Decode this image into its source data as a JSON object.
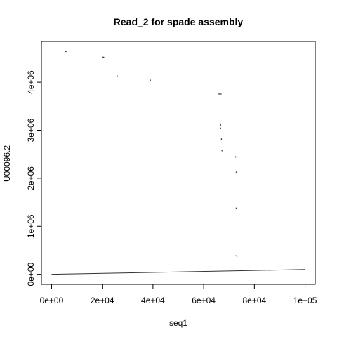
{
  "chart_data": {
    "type": "scatter",
    "title": "Read_2 for spade assembly",
    "xlabel": "seq1",
    "ylabel": "U00096.2",
    "xlim": [
      -4000,
      104000
    ],
    "ylim": [
      -210000,
      4850000
    ],
    "x_ticks": [
      {
        "value": 0,
        "label": "0e+00"
      },
      {
        "value": 20000,
        "label": "2e+04"
      },
      {
        "value": 40000,
        "label": "4e+04"
      },
      {
        "value": 60000,
        "label": "6e+04"
      },
      {
        "value": 80000,
        "label": "8e+04"
      },
      {
        "value": 100000,
        "label": "1e+05"
      }
    ],
    "y_ticks": [
      {
        "value": 0,
        "label": "0e+00"
      },
      {
        "value": 1000000,
        "label": "1e+06"
      },
      {
        "value": 2000000,
        "label": "2e+06"
      },
      {
        "value": 3000000,
        "label": "3e+06"
      },
      {
        "value": 4000000,
        "label": "4e+06"
      }
    ],
    "grid": false,
    "line_color": "#333333",
    "series": [
      {
        "kind": "line",
        "x": [
          0,
          100000
        ],
        "y": [
          0,
          100000
        ]
      },
      {
        "kind": "segments",
        "segments": [
          [
            [
              5500,
              4640000
            ],
            [
              5700,
              4638000
            ]
          ],
          [
            [
              20000,
              4525000
            ],
            [
              20600,
              4522000
            ]
          ],
          [
            [
              25800,
              4140000
            ],
            [
              25900,
              4128000
            ]
          ],
          [
            [
              38900,
              4050000
            ],
            [
              39000,
              4040000
            ]
          ],
          [
            [
              66000,
              3755000
            ],
            [
              66900,
              3753000
            ]
          ],
          [
            [
              66600,
              3135000
            ],
            [
              66700,
              3105000
            ]
          ],
          [
            [
              66600,
              3050000
            ],
            [
              66700,
              3030000
            ]
          ],
          [
            [
              67000,
              2820000
            ],
            [
              67050,
              2800000
            ]
          ],
          [
            [
              67200,
              2580000
            ],
            [
              67250,
              2570000
            ]
          ],
          [
            [
              72600,
              2450000
            ],
            [
              72700,
              2440000
            ]
          ],
          [
            [
              72800,
              2130000
            ],
            [
              72850,
              2120000
            ]
          ],
          [
            [
              72800,
              1380000
            ],
            [
              72850,
              1370000
            ]
          ],
          [
            [
              72600,
              385000
            ],
            [
              73300,
              381000
            ]
          ]
        ]
      }
    ]
  }
}
